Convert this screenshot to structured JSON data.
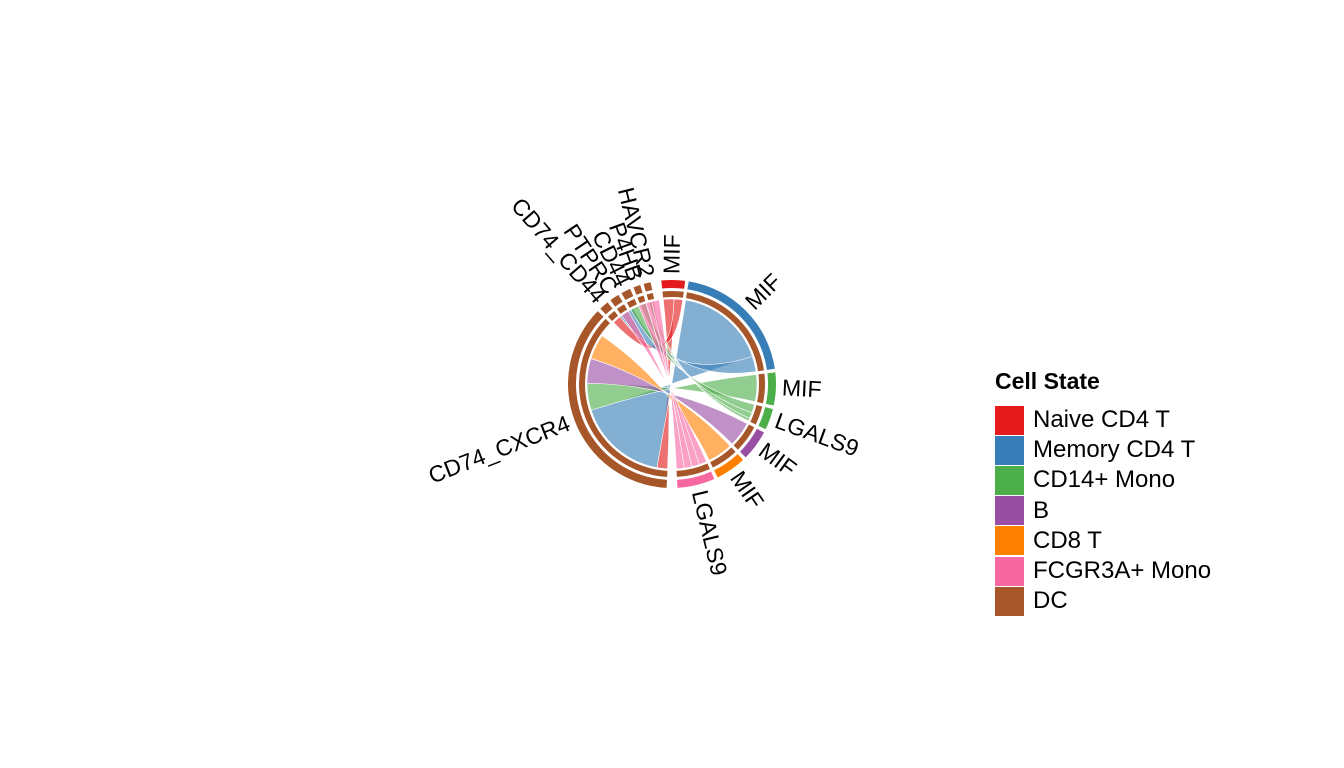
{
  "chart_data": {
    "type": "chord",
    "legend": {
      "title": "Cell State",
      "position": "right",
      "items": [
        {
          "label": "Naive CD4 T",
          "color": "#E41A1C"
        },
        {
          "label": "Memory CD4 T",
          "color": "#377EB8"
        },
        {
          "label": "CD14+ Mono",
          "color": "#4DAF4A"
        },
        {
          "label": "B",
          "color": "#984EA3"
        },
        {
          "label": "CD8 T",
          "color": "#FF7F00"
        },
        {
          "label": "FCGR3A+ Mono",
          "color": "#F768A1"
        },
        {
          "label": "DC",
          "color": "#A65628"
        }
      ]
    },
    "sectors": [
      {
        "label": "CD74_CXCR4",
        "cell_state": "DC",
        "role": "receptor",
        "value": 10.0
      },
      {
        "label": "CD74_CD44",
        "cell_state": "DC",
        "role": "receptor",
        "value": 0.4
      },
      {
        "label": "PTPRC",
        "cell_state": "DC",
        "role": "receptor",
        "value": 0.4
      },
      {
        "label": "CD44",
        "cell_state": "DC",
        "role": "receptor",
        "value": 0.4
      },
      {
        "label": "P4HB",
        "cell_state": "DC",
        "role": "receptor",
        "value": 0.3
      },
      {
        "label": "HAVCR2",
        "cell_state": "DC",
        "role": "receptor",
        "value": 0.3
      },
      {
        "label": "MIF",
        "cell_state": "Naive CD4 T",
        "role": "ligand",
        "value": 1.0
      },
      {
        "label": "MIF",
        "cell_state": "Memory CD4 T",
        "role": "ligand",
        "value": 5.5
      },
      {
        "label": "MIF",
        "cell_state": "CD14+ Mono",
        "role": "ligand",
        "value": 1.4
      },
      {
        "label": "LGALS9",
        "cell_state": "CD14+ Mono",
        "role": "ligand",
        "value": 0.9
      },
      {
        "label": "MIF",
        "cell_state": "B",
        "role": "ligand",
        "value": 1.3
      },
      {
        "label": "MIF",
        "cell_state": "CD8 T",
        "role": "ligand",
        "value": 1.3
      },
      {
        "label": "LGALS9",
        "cell_state": "FCGR3A+ Mono",
        "role": "ligand",
        "value": 1.6
      }
    ],
    "links": [
      {
        "from": 6,
        "to": 0,
        "value": 0.55,
        "color": "#E41A1C"
      },
      {
        "from": 6,
        "to": 1,
        "value": 0.45,
        "color": "#E41A1C"
      },
      {
        "from": 7,
        "to": 0,
        "value": 4.7,
        "color": "#377EB8"
      },
      {
        "from": 7,
        "to": 1,
        "value": 0.8,
        "color": "#377EB8"
      },
      {
        "from": 8,
        "to": 0,
        "value": 1.4,
        "color": "#4DAF4A"
      },
      {
        "from": 9,
        "to": 3,
        "value": 0.45,
        "color": "#4DAF4A"
      },
      {
        "from": 9,
        "to": 4,
        "value": 0.3,
        "color": "#4DAF4A"
      },
      {
        "from": 9,
        "to": 5,
        "value": 0.15,
        "color": "#4DAF4A"
      },
      {
        "from": 10,
        "to": 0,
        "value": 1.3,
        "color": "#984EA3"
      },
      {
        "from": 11,
        "to": 0,
        "value": 1.3,
        "color": "#FF7F00"
      },
      {
        "from": 12,
        "to": 2,
        "value": 0.4,
        "color": "#F768A1"
      },
      {
        "from": 12,
        "to": 3,
        "value": 0.4,
        "color": "#F768A1"
      },
      {
        "from": 12,
        "to": 4,
        "value": 0.4,
        "color": "#F768A1"
      },
      {
        "from": 12,
        "to": 5,
        "value": 0.4,
        "color": "#F768A1"
      }
    ]
  }
}
